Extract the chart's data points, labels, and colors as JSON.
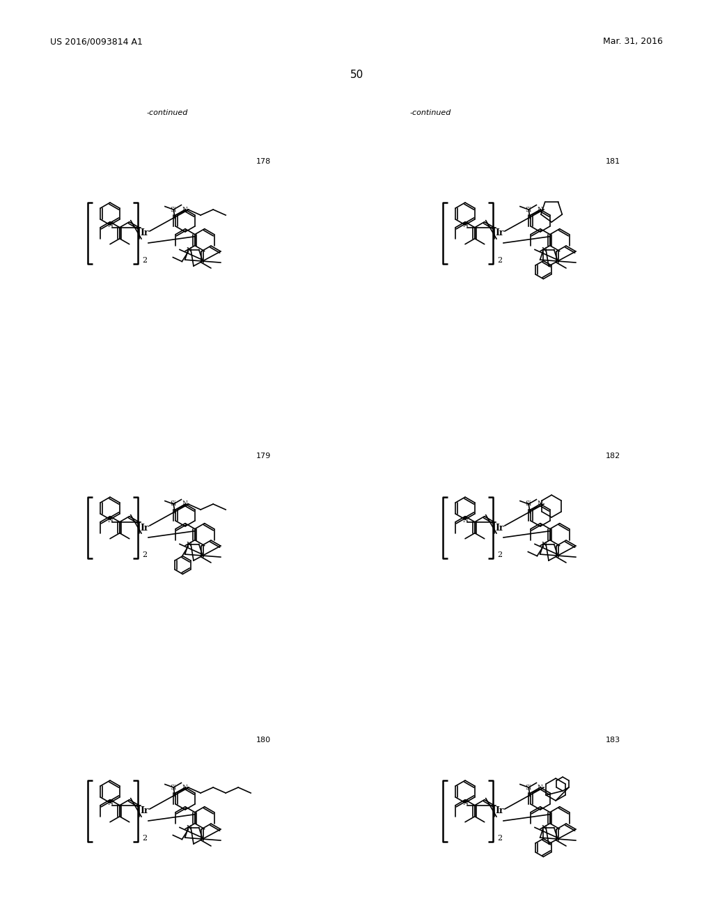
{
  "page_number": "50",
  "patent_number": "US 2016/0093814 A1",
  "patent_date": "Mar. 31, 2016",
  "continued_left": "-continued",
  "continued_right": "-continued",
  "compound_numbers": [
    "178",
    "179",
    "180",
    "181",
    "182",
    "183"
  ],
  "background_color": "#ffffff",
  "text_color": "#000000",
  "line_color": "#000000",
  "font_size_header": 9,
  "font_size_page": 11,
  "font_size_compound": 8,
  "font_size_continued": 8
}
